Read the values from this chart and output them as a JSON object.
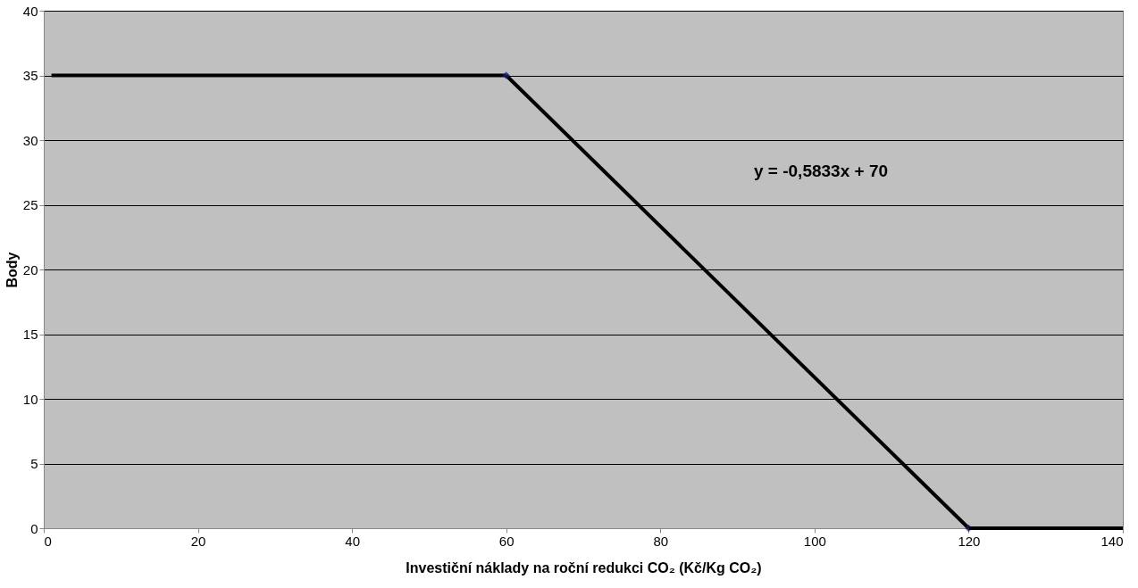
{
  "chart_data": {
    "type": "line",
    "xlabel": "Investiční náklady na roční redukci CO₂ (Kč/Kg CO₂)",
    "ylabel": "Body",
    "series": [
      {
        "color": "#000000",
        "x": [
          1,
          60
        ],
        "values": [
          35,
          35
        ]
      },
      {
        "color": "#000000",
        "x": [
          60,
          120
        ],
        "values": [
          35,
          0
        ],
        "marker": "diamond"
      },
      {
        "color": "#000000",
        "x": [
          120,
          140
        ],
        "values": [
          0,
          0
        ]
      }
    ],
    "annotations": [
      "y = -0,5833x + 70"
    ],
    "xlim": [
      0,
      140
    ],
    "xticks": [
      0,
      20,
      40,
      60,
      80,
      100,
      120,
      140
    ],
    "ylim": [
      0,
      40
    ],
    "yticks": [
      0,
      5,
      10,
      15,
      20,
      25,
      30,
      35,
      40
    ],
    "grid": "y"
  }
}
